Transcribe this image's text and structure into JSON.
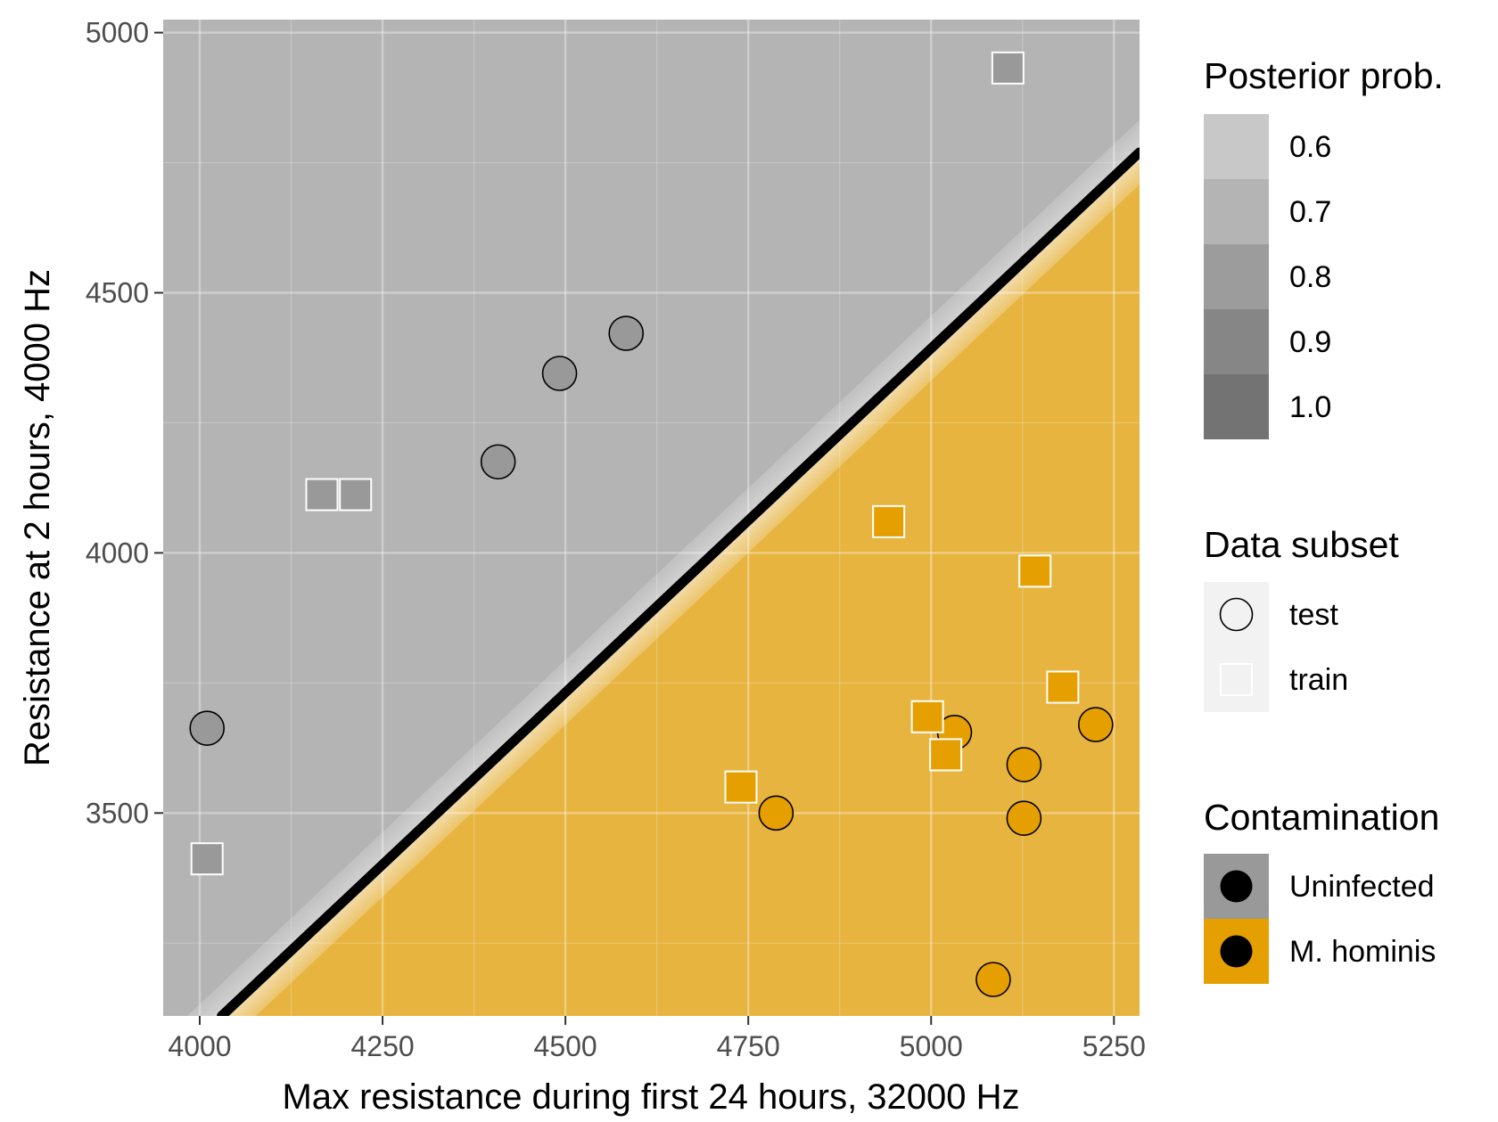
{
  "chart_data": {
    "type": "scatter",
    "xlabel": "Max resistance during first 24 hours, 32000 Hz",
    "ylabel": "Resistance at 2 hours, 4000 Hz",
    "xlim": [
      3950,
      5285
    ],
    "ylim": [
      3110,
      5025
    ],
    "x_ticks": [
      4000,
      4250,
      4500,
      4750,
      5000,
      5250
    ],
    "y_ticks": [
      3500,
      4000,
      4500,
      5000
    ],
    "grid": true,
    "decision_boundary": {
      "x": [
        4030,
        5285
      ],
      "y": [
        3110,
        4770
      ]
    },
    "colors": {
      "uninfected": "#999999",
      "mhominis": "#E69F00",
      "panel_bg": "#ebebeb",
      "line": "#000000"
    },
    "points": [
      {
        "x": 4010,
        "y": 3663,
        "subset": "test",
        "contamination": "Uninfected"
      },
      {
        "x": 4408,
        "y": 4175,
        "subset": "test",
        "contamination": "Uninfected"
      },
      {
        "x": 4492,
        "y": 4345,
        "subset": "test",
        "contamination": "Uninfected"
      },
      {
        "x": 4583,
        "y": 4422,
        "subset": "test",
        "contamination": "Uninfected"
      },
      {
        "x": 4010,
        "y": 3412,
        "subset": "train",
        "contamination": "Uninfected"
      },
      {
        "x": 4167,
        "y": 4112,
        "subset": "train",
        "contamination": "Uninfected"
      },
      {
        "x": 4213,
        "y": 4112,
        "subset": "train",
        "contamination": "Uninfected"
      },
      {
        "x": 5105,
        "y": 4932,
        "subset": "train",
        "contamination": "Uninfected"
      },
      {
        "x": 4788,
        "y": 3500,
        "subset": "test",
        "contamination": "M. hominis"
      },
      {
        "x": 5032,
        "y": 3655,
        "subset": "test",
        "contamination": "M. hominis"
      },
      {
        "x": 5085,
        "y": 3180,
        "subset": "test",
        "contamination": "M. hominis"
      },
      {
        "x": 5127,
        "y": 3593,
        "subset": "test",
        "contamination": "M. hominis"
      },
      {
        "x": 5127,
        "y": 3490,
        "subset": "test",
        "contamination": "M. hominis"
      },
      {
        "x": 5225,
        "y": 3670,
        "subset": "test",
        "contamination": "M. hominis"
      },
      {
        "x": 4740,
        "y": 3550,
        "subset": "train",
        "contamination": "M. hominis"
      },
      {
        "x": 4942,
        "y": 4060,
        "subset": "train",
        "contamination": "M. hominis"
      },
      {
        "x": 4995,
        "y": 3685,
        "subset": "train",
        "contamination": "M. hominis"
      },
      {
        "x": 5020,
        "y": 3612,
        "subset": "train",
        "contamination": "M. hominis"
      },
      {
        "x": 5142,
        "y": 3965,
        "subset": "train",
        "contamination": "M. hominis"
      },
      {
        "x": 5180,
        "y": 3742,
        "subset": "train",
        "contamination": "M. hominis"
      }
    ],
    "legend": {
      "posterior": {
        "title": "Posterior prob.",
        "entries": [
          {
            "label": "0.6",
            "color": "#c8c8c8"
          },
          {
            "label": "0.7",
            "color": "#b4b4b4"
          },
          {
            "label": "0.8",
            "color": "#9c9c9c"
          },
          {
            "label": "0.9",
            "color": "#868686"
          },
          {
            "label": "1.0",
            "color": "#737373"
          }
        ]
      },
      "subset": {
        "title": "Data subset",
        "entries": [
          {
            "label": "test",
            "shape": "circle"
          },
          {
            "label": "train",
            "shape": "square"
          }
        ]
      },
      "contamination": {
        "title": "Contamination",
        "entries": [
          {
            "label": "Uninfected",
            "color": "#999999"
          },
          {
            "label": "M. hominis",
            "color": "#E69F00"
          }
        ]
      }
    }
  }
}
